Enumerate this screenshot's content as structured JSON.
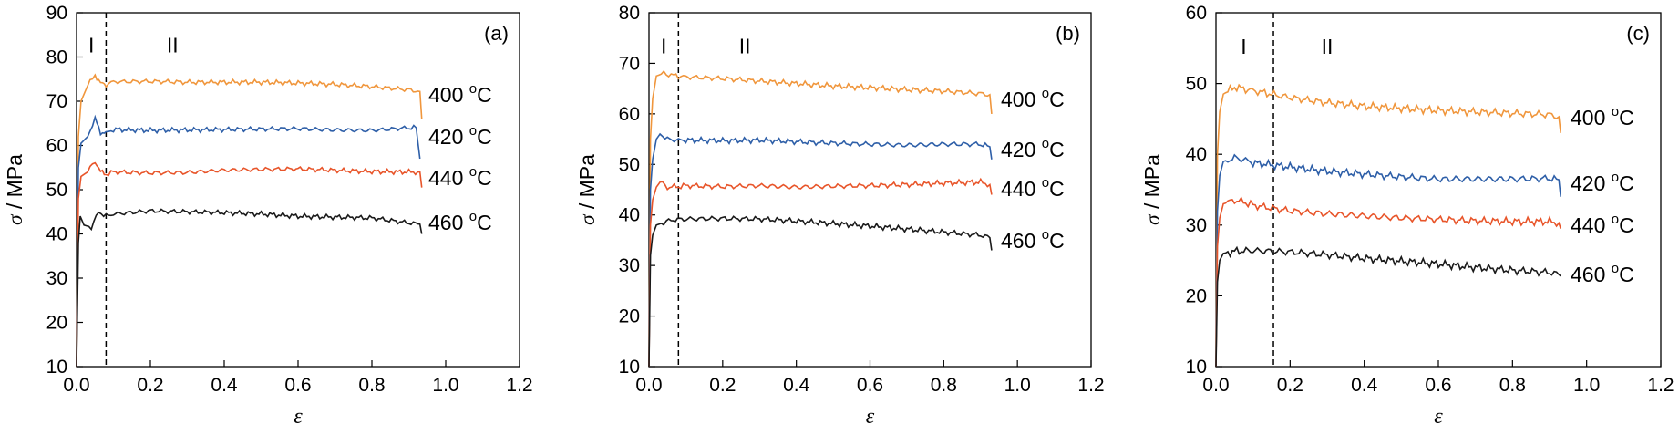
{
  "chart_data": [
    {
      "type": "line",
      "panel_label": "(a)",
      "xlabel": "ε",
      "ylabel_symbol": "σ",
      "ylabel_unit": " / MPa",
      "xlim": [
        0,
        1.2
      ],
      "ylim": [
        10,
        90
      ],
      "xticks": [
        "0.0",
        "0.2",
        "0.4",
        "0.6",
        "0.8",
        "1.0",
        "1.2"
      ],
      "yticks": [
        "10",
        "20",
        "30",
        "40",
        "50",
        "60",
        "70",
        "80",
        "90"
      ],
      "divider_x": 0.08,
      "regions": [
        {
          "text": "I",
          "x": 0.04,
          "y": 81
        },
        {
          "text": "II",
          "x": 0.26,
          "y": 81
        }
      ],
      "series": [
        {
          "name": "400 °C",
          "label_main": "400 ",
          "label_sup": "o",
          "label_unit": "C",
          "color": "#F0963C",
          "points": [
            [
              0,
              10
            ],
            [
              0.005,
              62
            ],
            [
              0.012,
              70
            ],
            [
              0.03,
              73.5
            ],
            [
              0.05,
              76
            ],
            [
              0.065,
              74
            ],
            [
              0.08,
              73.8
            ],
            [
              0.1,
              74.4
            ],
            [
              0.2,
              74.5
            ],
            [
              0.3,
              74.3
            ],
            [
              0.4,
              74.3
            ],
            [
              0.5,
              74.3
            ],
            [
              0.6,
              74.1
            ],
            [
              0.7,
              73.8
            ],
            [
              0.8,
              73.3
            ],
            [
              0.9,
              72.6
            ],
            [
              0.93,
              72.2
            ],
            [
              0.935,
              66
            ]
          ]
        },
        {
          "name": "420 °C",
          "label_main": "420 ",
          "label_sup": "o",
          "label_unit": "C",
          "color": "#2E5FA8",
          "points": [
            [
              0,
              10
            ],
            [
              0.005,
              55
            ],
            [
              0.012,
              60.5
            ],
            [
              0.03,
              62
            ],
            [
              0.05,
              66
            ],
            [
              0.065,
              63
            ],
            [
              0.08,
              62.8
            ],
            [
              0.1,
              63.6
            ],
            [
              0.2,
              63.4
            ],
            [
              0.3,
              63.5
            ],
            [
              0.4,
              63.6
            ],
            [
              0.5,
              63.7
            ],
            [
              0.6,
              63.8
            ],
            [
              0.7,
              63.5
            ],
            [
              0.8,
              63.4
            ],
            [
              0.9,
              64
            ],
            [
              0.92,
              64
            ],
            [
              0.93,
              57
            ]
          ]
        },
        {
          "name": "440 °C",
          "label_main": "440 ",
          "label_sup": "o",
          "label_unit": "C",
          "color": "#E8552A",
          "points": [
            [
              0,
              10
            ],
            [
              0.005,
              48
            ],
            [
              0.012,
              53
            ],
            [
              0.03,
              54
            ],
            [
              0.05,
              56.5
            ],
            [
              0.065,
              54
            ],
            [
              0.08,
              53.5
            ],
            [
              0.1,
              54
            ],
            [
              0.2,
              53.8
            ],
            [
              0.3,
              53.9
            ],
            [
              0.4,
              54.4
            ],
            [
              0.5,
              54.6
            ],
            [
              0.6,
              54.7
            ],
            [
              0.7,
              54.4
            ],
            [
              0.8,
              54.1
            ],
            [
              0.9,
              54
            ],
            [
              0.93,
              54
            ],
            [
              0.935,
              50.5
            ]
          ]
        },
        {
          "name": "460 °C",
          "label_main": "460 ",
          "label_sup": "o",
          "label_unit": "C",
          "color": "#1A1A1A",
          "points": [
            [
              0,
              10
            ],
            [
              0.005,
              38
            ],
            [
              0.01,
              44
            ],
            [
              0.02,
              42
            ],
            [
              0.04,
              41.5
            ],
            [
              0.06,
              45
            ],
            [
              0.08,
              44
            ],
            [
              0.1,
              44.5
            ],
            [
              0.2,
              45.2
            ],
            [
              0.3,
              45
            ],
            [
              0.4,
              44.8
            ],
            [
              0.5,
              44.5
            ],
            [
              0.6,
              44
            ],
            [
              0.7,
              43.8
            ],
            [
              0.8,
              43.6
            ],
            [
              0.9,
              42.5
            ],
            [
              0.93,
              42.2
            ],
            [
              0.935,
              40
            ]
          ]
        }
      ]
    },
    {
      "type": "line",
      "panel_label": "(b)",
      "xlabel": "ε",
      "ylabel_symbol": "σ",
      "ylabel_unit": " / MPa",
      "xlim": [
        0,
        1.2
      ],
      "ylim": [
        10,
        80
      ],
      "xticks": [
        "0.0",
        "0.2",
        "0.4",
        "0.6",
        "0.8",
        "1.0",
        "1.2"
      ],
      "yticks": [
        "10",
        "20",
        "30",
        "40",
        "50",
        "60",
        "70",
        "80"
      ],
      "divider_x": 0.08,
      "regions": [
        {
          "text": "I",
          "x": 0.04,
          "y": 72
        },
        {
          "text": "II",
          "x": 0.26,
          "y": 72
        }
      ],
      "series": [
        {
          "name": "400 °C",
          "label_main": "400 ",
          "label_sup": "o",
          "label_unit": "C",
          "color": "#F0963C",
          "points": [
            [
              0,
              10
            ],
            [
              0.004,
              55
            ],
            [
              0.01,
              63
            ],
            [
              0.02,
              67.5
            ],
            [
              0.04,
              68
            ],
            [
              0.06,
              67.7
            ],
            [
              0.08,
              67.5
            ],
            [
              0.1,
              67.3
            ],
            [
              0.2,
              67
            ],
            [
              0.3,
              66.5
            ],
            [
              0.4,
              66
            ],
            [
              0.5,
              65.5
            ],
            [
              0.6,
              65.2
            ],
            [
              0.7,
              64.8
            ],
            [
              0.8,
              64.5
            ],
            [
              0.9,
              64
            ],
            [
              0.925,
              63.8
            ],
            [
              0.93,
              60
            ]
          ]
        },
        {
          "name": "420 °C",
          "label_main": "420 ",
          "label_sup": "o",
          "label_unit": "C",
          "color": "#2E5FA8",
          "points": [
            [
              0,
              10
            ],
            [
              0.004,
              45
            ],
            [
              0.01,
              51
            ],
            [
              0.02,
              55
            ],
            [
              0.03,
              56
            ],
            [
              0.05,
              55
            ],
            [
              0.08,
              54.8
            ],
            [
              0.1,
              54.8
            ],
            [
              0.2,
              54.7
            ],
            [
              0.3,
              54.8
            ],
            [
              0.4,
              54.5
            ],
            [
              0.5,
              54.2
            ],
            [
              0.6,
              54
            ],
            [
              0.7,
              53.8
            ],
            [
              0.8,
              54
            ],
            [
              0.9,
              54
            ],
            [
              0.925,
              53.5
            ],
            [
              0.93,
              51
            ]
          ]
        },
        {
          "name": "440 °C",
          "label_main": "440 ",
          "label_sup": "o",
          "label_unit": "C",
          "color": "#E8552A",
          "points": [
            [
              0,
              10
            ],
            [
              0.004,
              38
            ],
            [
              0.01,
              43
            ],
            [
              0.02,
              45.5
            ],
            [
              0.03,
              46.5
            ],
            [
              0.05,
              45.5
            ],
            [
              0.08,
              45.6
            ],
            [
              0.1,
              45.8
            ],
            [
              0.2,
              45.6
            ],
            [
              0.3,
              45.8
            ],
            [
              0.4,
              45.5
            ],
            [
              0.5,
              45.7
            ],
            [
              0.6,
              45.8
            ],
            [
              0.7,
              46
            ],
            [
              0.8,
              46.3
            ],
            [
              0.9,
              46.5
            ],
            [
              0.925,
              46
            ],
            [
              0.93,
              44
            ]
          ]
        },
        {
          "name": "460 °C",
          "label_main": "460 ",
          "label_sup": "o",
          "label_unit": "C",
          "color": "#1A1A1A",
          "points": [
            [
              0,
              10
            ],
            [
              0.004,
              32
            ],
            [
              0.01,
              36
            ],
            [
              0.02,
              38
            ],
            [
              0.04,
              38.5
            ],
            [
              0.06,
              39
            ],
            [
              0.1,
              39.2
            ],
            [
              0.2,
              39.3
            ],
            [
              0.3,
              39.2
            ],
            [
              0.4,
              38.8
            ],
            [
              0.5,
              38.3
            ],
            [
              0.6,
              37.8
            ],
            [
              0.7,
              37.2
            ],
            [
              0.8,
              36.6
            ],
            [
              0.9,
              36
            ],
            [
              0.925,
              35.5
            ],
            [
              0.93,
              33
            ]
          ]
        }
      ]
    },
    {
      "type": "line",
      "panel_label": "(c)",
      "xlabel": "ε",
      "ylabel_symbol": "σ",
      "ylabel_unit": " / MPa",
      "xlim": [
        0,
        1.2
      ],
      "ylim": [
        10,
        60
      ],
      "xticks": [
        "0.0",
        "0.2",
        "0.4",
        "0.6",
        "0.8",
        "1.0",
        "1.2"
      ],
      "yticks": [
        "10",
        "20",
        "30",
        "40",
        "50",
        "60"
      ],
      "divider_x": 0.155,
      "regions": [
        {
          "text": "I",
          "x": 0.075,
          "y": 54.2
        },
        {
          "text": "II",
          "x": 0.3,
          "y": 54.2
        }
      ],
      "series": [
        {
          "name": "400 °C",
          "label_main": "400 ",
          "label_sup": "o",
          "label_unit": "C",
          "color": "#F0963C",
          "points": [
            [
              0,
              10
            ],
            [
              0.004,
              40
            ],
            [
              0.01,
              46
            ],
            [
              0.02,
              48.5
            ],
            [
              0.05,
              49.5
            ],
            [
              0.08,
              49.2
            ],
            [
              0.1,
              49
            ],
            [
              0.15,
              48.5
            ],
            [
              0.2,
              48
            ],
            [
              0.3,
              47.3
            ],
            [
              0.4,
              46.8
            ],
            [
              0.5,
              46.5
            ],
            [
              0.6,
              46.2
            ],
            [
              0.7,
              46
            ],
            [
              0.8,
              45.8
            ],
            [
              0.9,
              45.6
            ],
            [
              0.925,
              45.3
            ],
            [
              0.93,
              43
            ]
          ]
        },
        {
          "name": "420 °C",
          "label_main": "420 ",
          "label_sup": "o",
          "label_unit": "C",
          "color": "#2E5FA8",
          "points": [
            [
              0,
              10
            ],
            [
              0.004,
              32
            ],
            [
              0.01,
              37
            ],
            [
              0.02,
              39
            ],
            [
              0.05,
              39.5
            ],
            [
              0.08,
              39.2
            ],
            [
              0.1,
              38.8
            ],
            [
              0.2,
              38.2
            ],
            [
              0.3,
              37.6
            ],
            [
              0.4,
              37.2
            ],
            [
              0.5,
              36.8
            ],
            [
              0.6,
              36.5
            ],
            [
              0.7,
              36.5
            ],
            [
              0.8,
              36.5
            ],
            [
              0.9,
              36.6
            ],
            [
              0.925,
              36.4
            ],
            [
              0.93,
              34
            ]
          ]
        },
        {
          "name": "440 °C",
          "label_main": "440 ",
          "label_sup": "o",
          "label_unit": "C",
          "color": "#E8552A",
          "points": [
            [
              0,
              10
            ],
            [
              0.004,
              27
            ],
            [
              0.01,
              31
            ],
            [
              0.02,
              33
            ],
            [
              0.05,
              33.5
            ],
            [
              0.08,
              33.2
            ],
            [
              0.1,
              32.8
            ],
            [
              0.2,
              32
            ],
            [
              0.3,
              31.6
            ],
            [
              0.4,
              31.3
            ],
            [
              0.5,
              31
            ],
            [
              0.6,
              30.8
            ],
            [
              0.7,
              30.6
            ],
            [
              0.8,
              30.5
            ],
            [
              0.9,
              30.5
            ],
            [
              0.925,
              30.3
            ],
            [
              0.93,
              29.5
            ]
          ]
        },
        {
          "name": "460 °C",
          "label_main": "460 ",
          "label_sup": "o",
          "label_unit": "C",
          "color": "#1A1A1A",
          "points": [
            [
              0,
              10
            ],
            [
              0.004,
              22
            ],
            [
              0.01,
              25
            ],
            [
              0.02,
              26
            ],
            [
              0.05,
              26.3
            ],
            [
              0.1,
              26.4
            ],
            [
              0.2,
              26.2
            ],
            [
              0.3,
              25.8
            ],
            [
              0.4,
              25.3
            ],
            [
              0.5,
              24.9
            ],
            [
              0.6,
              24.5
            ],
            [
              0.7,
              24
            ],
            [
              0.8,
              23.6
            ],
            [
              0.9,
              23.3
            ],
            [
              0.925,
              23
            ],
            [
              0.93,
              22.8
            ]
          ]
        }
      ]
    }
  ]
}
